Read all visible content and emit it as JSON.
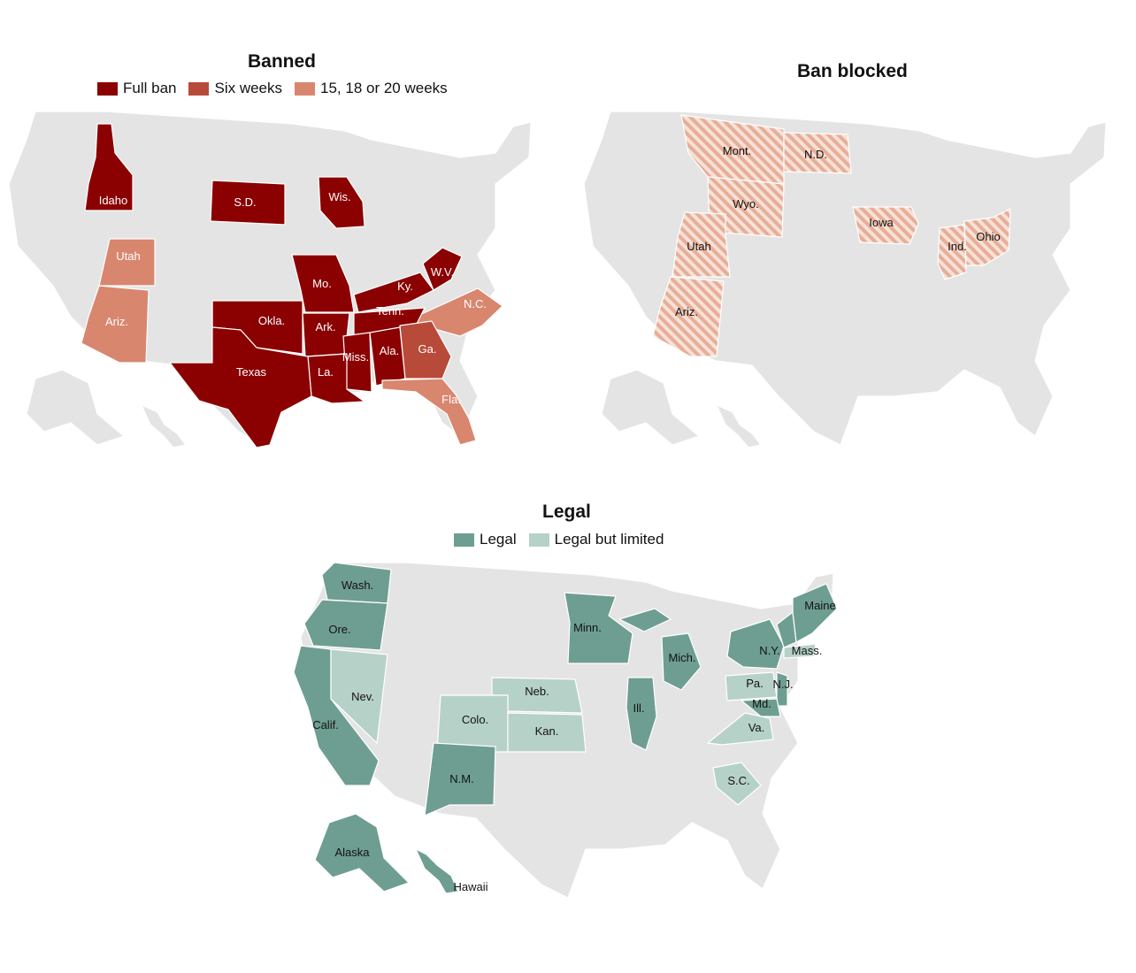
{
  "maps": {
    "banned": {
      "title": "Banned",
      "legend": [
        {
          "label": "Full ban",
          "color": "#8b0000"
        },
        {
          "label": "Six weeks",
          "color": "#b84a3a"
        },
        {
          "label": "15, 18 or 20 weeks",
          "color": "#d9866f"
        }
      ],
      "states": [
        {
          "label": "Idaho",
          "category": "Full ban"
        },
        {
          "label": "S.D.",
          "category": "Full ban"
        },
        {
          "label": "Wis.",
          "category": "Full ban"
        },
        {
          "label": "Utah",
          "category": "15, 18 or 20 weeks"
        },
        {
          "label": "Mo.",
          "category": "Full ban"
        },
        {
          "label": "Ky.",
          "category": "Full ban"
        },
        {
          "label": "W.V.",
          "category": "Full ban"
        },
        {
          "label": "N.C.",
          "category": "15, 18 or 20 weeks"
        },
        {
          "label": "Ariz.",
          "category": "15, 18 or 20 weeks"
        },
        {
          "label": "Okla.",
          "category": "Full ban"
        },
        {
          "label": "Ark.",
          "category": "Full ban"
        },
        {
          "label": "Tenn.",
          "category": "Full ban"
        },
        {
          "label": "Miss.",
          "category": "Full ban"
        },
        {
          "label": "Ala.",
          "category": "Full ban"
        },
        {
          "label": "Ga.",
          "category": "Six weeks"
        },
        {
          "label": "La.",
          "category": "Full ban"
        },
        {
          "label": "Texas",
          "category": "Full ban"
        },
        {
          "label": "Fla.",
          "category": "15, 18 or 20 weeks"
        }
      ]
    },
    "blocked": {
      "title": "Ban blocked",
      "color": "#e7ae97",
      "states": [
        {
          "label": "Mont."
        },
        {
          "label": "N.D."
        },
        {
          "label": "Wyo."
        },
        {
          "label": "Iowa"
        },
        {
          "label": "Utah"
        },
        {
          "label": "Ind."
        },
        {
          "label": "Ohio"
        },
        {
          "label": "Ariz."
        }
      ]
    },
    "legal": {
      "title": "Legal",
      "legend": [
        {
          "label": "Legal",
          "color": "#6e9e91"
        },
        {
          "label": "Legal but limited",
          "color": "#b6d1c8"
        }
      ],
      "states": [
        {
          "label": "Wash.",
          "category": "Legal"
        },
        {
          "label": "Ore.",
          "category": "Legal"
        },
        {
          "label": "Minn.",
          "category": "Legal"
        },
        {
          "label": "Maine",
          "category": "Legal"
        },
        {
          "label": "Mich.",
          "category": "Legal"
        },
        {
          "label": "N.Y.",
          "category": "Legal"
        },
        {
          "label": "Mass.",
          "category": "Legal but limited"
        },
        {
          "label": "Nev.",
          "category": "Legal but limited"
        },
        {
          "label": "Neb.",
          "category": "Legal but limited"
        },
        {
          "label": "Pa.",
          "category": "Legal but limited"
        },
        {
          "label": "N.J.",
          "category": "Legal"
        },
        {
          "label": "Ill.",
          "category": "Legal"
        },
        {
          "label": "Md.",
          "category": "Legal"
        },
        {
          "label": "Colo.",
          "category": "Legal but limited"
        },
        {
          "label": "Calif.",
          "category": "Legal"
        },
        {
          "label": "Kan.",
          "category": "Legal but limited"
        },
        {
          "label": "Va.",
          "category": "Legal but limited"
        },
        {
          "label": "N.M.",
          "category": "Legal"
        },
        {
          "label": "S.C.",
          "category": "Legal but limited"
        },
        {
          "label": "Alaska",
          "category": "Legal"
        },
        {
          "label": "Hawaii",
          "category": "Legal"
        }
      ]
    }
  }
}
